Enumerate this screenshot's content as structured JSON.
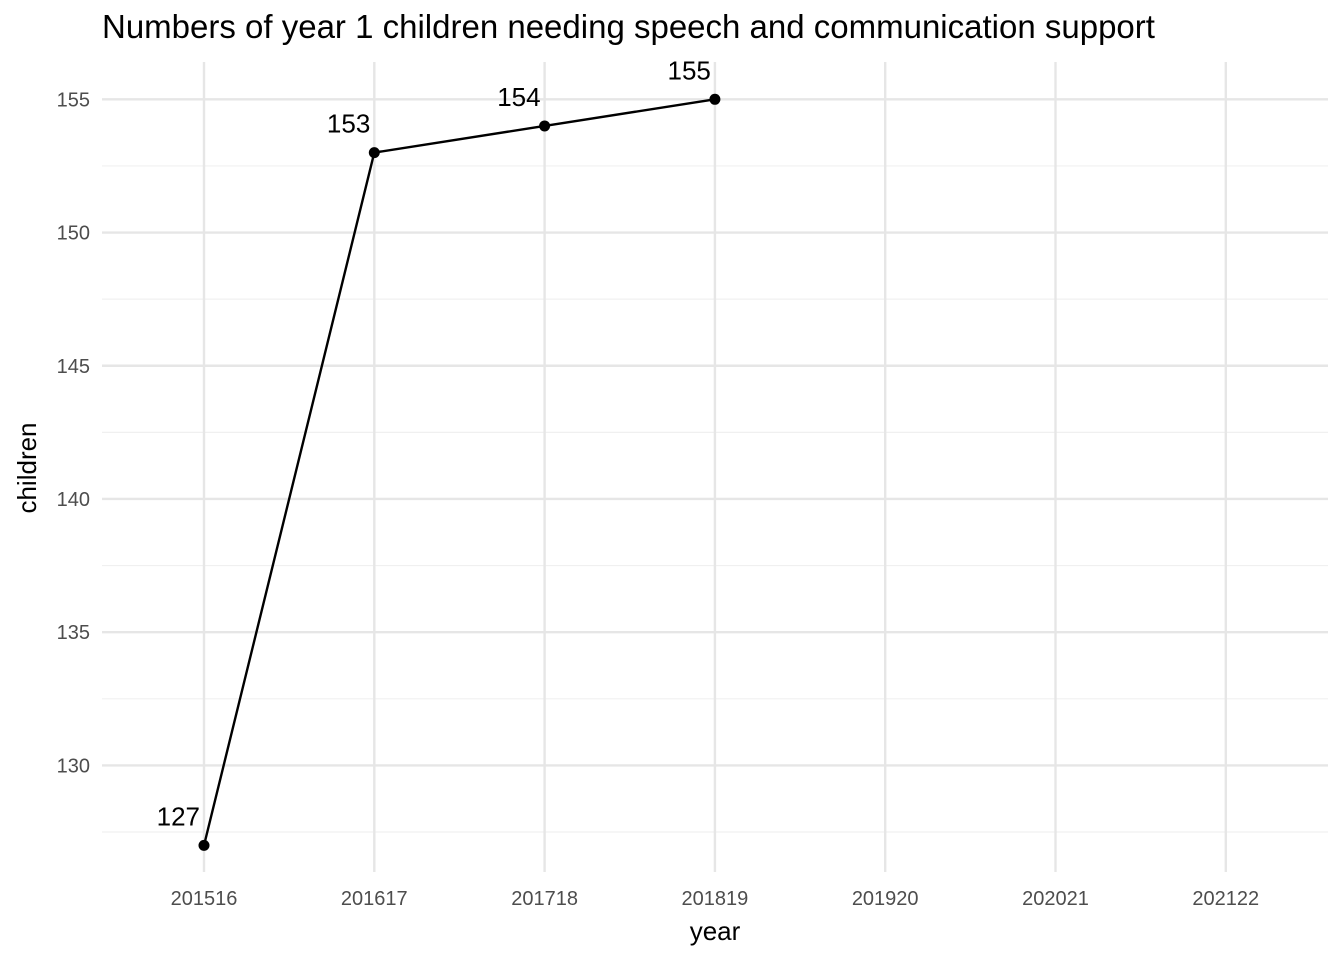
{
  "chart_data": {
    "type": "line",
    "title": "Numbers of year 1 children needing speech and communication support",
    "xlabel": "year",
    "ylabel": "children",
    "categories": [
      "201516",
      "201617",
      "201718",
      "201819",
      "201920",
      "202021",
      "202122"
    ],
    "series": [
      {
        "values": [
          127,
          153,
          154,
          155,
          null,
          null,
          null
        ]
      }
    ],
    "data_labels": [
      "127",
      "153",
      "154",
      "155"
    ],
    "y_ticks": [
      "130",
      "135",
      "140",
      "145",
      "150",
      "155"
    ],
    "ylim": [
      126,
      156.4
    ],
    "grid": true,
    "legend": "none",
    "line_color": "#000000"
  }
}
